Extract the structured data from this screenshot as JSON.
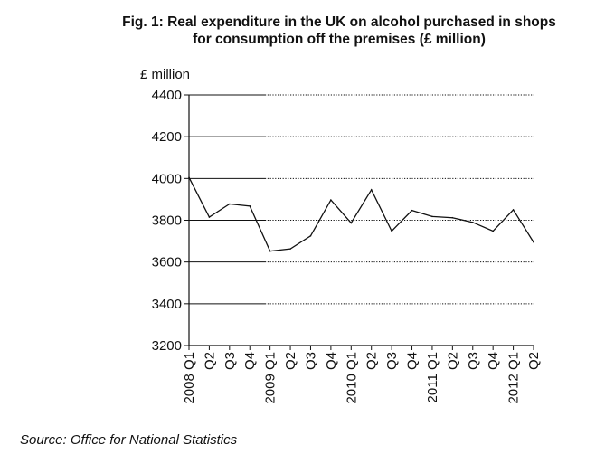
{
  "title_line1": "Fig. 1: Real expenditure in the UK on alcohol purchased in shops",
  "title_line2": "for consumption off the premises (£ million)",
  "source": "Source: Office for National Statistics",
  "chart_data": {
    "type": "line",
    "title": "Fig. 1: Real expenditure in the UK on alcohol purchased in shops for consumption off the premises (£ million)",
    "ylabel": "£ million",
    "xlabel": "",
    "ylim": [
      3200,
      4400
    ],
    "yticks": [
      3200,
      3400,
      3600,
      3800,
      4000,
      4200,
      4400
    ],
    "grid": true,
    "legend": "none",
    "x_tick_labels": [
      "2008 Q1",
      "Q2",
      "Q3",
      "Q4",
      "2009 Q1",
      "Q2",
      "Q3",
      "Q4",
      "2010 Q1",
      "Q2",
      "Q3",
      "Q4",
      "2011 Q1",
      "Q2",
      "Q3",
      "Q4",
      "2012 Q1",
      "Q2"
    ],
    "series": [
      {
        "values": [
          4005,
          3815,
          3878,
          3868,
          3652,
          3663,
          3725,
          3897,
          3787,
          3946,
          3748,
          3847,
          3818,
          3812,
          3790,
          3748,
          3850,
          3695
        ]
      }
    ]
  }
}
